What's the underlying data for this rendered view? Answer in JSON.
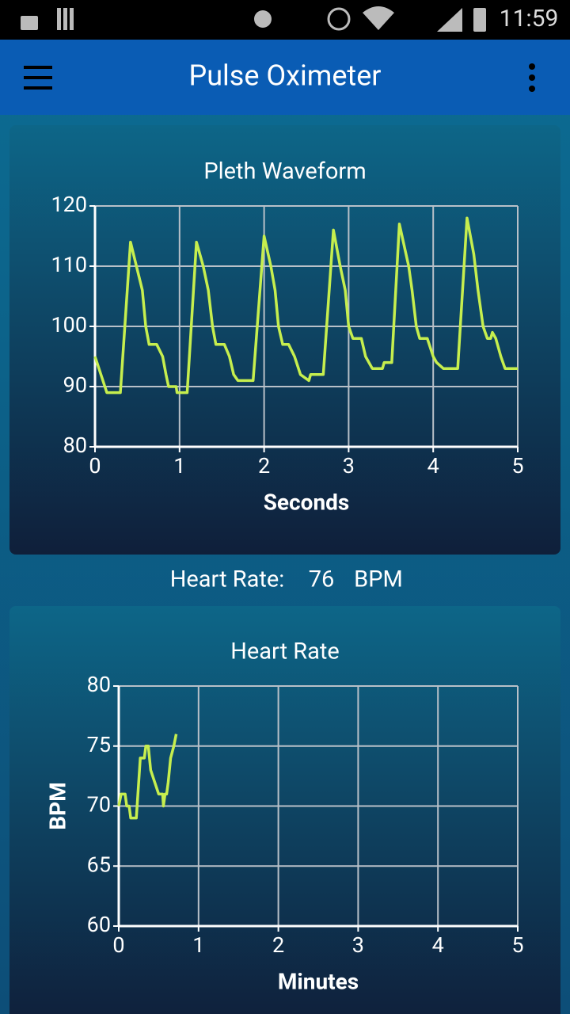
{
  "status_bar": {
    "time": "11:59"
  },
  "app_bar": {
    "title": "Pulse Oximeter"
  },
  "heart_rate": {
    "label": "Heart Rate:",
    "value": 76,
    "unit": "BPM"
  },
  "chart_data": [
    {
      "type": "line",
      "title": "Pleth Waveform",
      "x_label": "Seconds",
      "color": "#c6ee4e",
      "xlim": [
        0,
        5
      ],
      "xticks": [
        0,
        1,
        2,
        3,
        4,
        5
      ],
      "ylim": [
        80,
        120
      ],
      "yticks": [
        80,
        90,
        100,
        110,
        120
      ],
      "grid": true,
      "x": [
        0,
        0.14,
        0.3,
        0.42,
        0.49,
        0.56,
        0.6,
        0.64,
        0.73,
        0.8,
        0.84,
        0.87,
        0.96,
        0.97,
        1.09,
        1.2,
        1.28,
        1.34,
        1.39,
        1.43,
        1.53,
        1.59,
        1.64,
        1.69,
        1.87,
        2.0,
        2.08,
        2.13,
        2.17,
        2.22,
        2.29,
        2.36,
        2.43,
        2.53,
        2.55,
        2.7,
        2.82,
        2.9,
        2.96,
        3.0,
        3.05,
        3.15,
        3.2,
        3.28,
        3.4,
        3.42,
        3.51,
        3.6,
        3.71,
        3.75,
        3.8,
        3.84,
        3.93,
        4.0,
        4.04,
        4.12,
        4.29,
        4.4,
        4.48,
        4.53,
        4.59,
        4.64,
        4.68,
        4.7,
        4.74,
        4.8,
        4.85,
        5.0
      ],
      "values": [
        95,
        89,
        89,
        114,
        110,
        106,
        100,
        97,
        97,
        95,
        92,
        90,
        90,
        89,
        89,
        114,
        110,
        106,
        100,
        97,
        97,
        95,
        92,
        91,
        91,
        115,
        110,
        106,
        100,
        97,
        97,
        95,
        92,
        91,
        92,
        92,
        116,
        110,
        106,
        100,
        98,
        98,
        95,
        93,
        93,
        94,
        94,
        117,
        110,
        106,
        100,
        98,
        98,
        95,
        94,
        93,
        93,
        118,
        112,
        106,
        100,
        98,
        98,
        99,
        98,
        95,
        93,
        93
      ]
    },
    {
      "type": "line",
      "title": "Heart Rate",
      "x_label": "Minutes",
      "y_label": "BPM",
      "color": "#c6ee4e",
      "xlim": [
        0,
        5
      ],
      "xticks": [
        0,
        1,
        2,
        3,
        4,
        5
      ],
      "ylim": [
        60,
        80
      ],
      "yticks": [
        60,
        65,
        70,
        75,
        80
      ],
      "grid": true,
      "x": [
        0,
        0.03,
        0.08,
        0.1,
        0.13,
        0.15,
        0.22,
        0.24,
        0.27,
        0.32,
        0.34,
        0.37,
        0.4,
        0.45,
        0.5,
        0.55,
        0.56,
        0.58,
        0.6,
        0.62,
        0.65,
        0.69,
        0.72
      ],
      "values": [
        70,
        71,
        71,
        70,
        70,
        69,
        69,
        71,
        74,
        74,
        75,
        75,
        73,
        72,
        71,
        71,
        70,
        71,
        71,
        72,
        74,
        75,
        76
      ]
    }
  ]
}
